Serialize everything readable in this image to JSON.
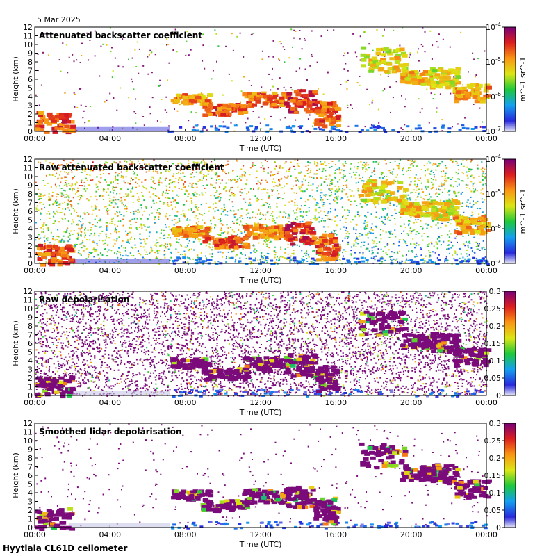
{
  "date": "5 Mar 2025",
  "footer": "Hyytiala CL61D ceilometer",
  "chart_data": [
    {
      "type": "heatmap",
      "title": "Attenuated backscatter coefficient",
      "xlabel": "Time (UTC)",
      "ylabel": "Height (km)",
      "xticks": [
        "00:00",
        "04:00",
        "08:00",
        "12:00",
        "16:00",
        "20:00",
        "00:00"
      ],
      "yticks": [
        "0",
        "1",
        "2",
        "3",
        "4",
        "5",
        "6",
        "7",
        "8",
        "9",
        "10",
        "11",
        "12"
      ],
      "xlim_hours": [
        0,
        24
      ],
      "ylim_km": [
        0,
        12
      ],
      "colorbar": {
        "scale": "log",
        "range": [
          1e-07,
          0.0001
        ],
        "ticks": [
          "10^-7",
          "10^-6",
          "10^-5",
          "10^-4"
        ],
        "units": "m^-1 sr^-1"
      },
      "background": "sparse"
    },
    {
      "type": "heatmap",
      "title": "Raw attenuated backscatter coefficient",
      "xlabel": "Time (UTC)",
      "ylabel": "Height (km)",
      "xticks": [
        "00:00",
        "04:00",
        "08:00",
        "12:00",
        "16:00",
        "20:00",
        "00:00"
      ],
      "yticks": [
        "0",
        "1",
        "2",
        "3",
        "4",
        "5",
        "6",
        "7",
        "8",
        "9",
        "10",
        "11",
        "12"
      ],
      "xlim_hours": [
        0,
        24
      ],
      "ylim_km": [
        0,
        12
      ],
      "colorbar": {
        "scale": "log",
        "range": [
          1e-07,
          0.0001
        ],
        "ticks": [
          "10^-7",
          "10^-6",
          "10^-5",
          "10^-4"
        ],
        "units": "m^-1 sr^-1"
      },
      "background": "noisy"
    },
    {
      "type": "heatmap",
      "title": "Raw depolarisation",
      "xlabel": "Time (UTC)",
      "ylabel": "Height (km)",
      "xticks": [
        "00:00",
        "04:00",
        "08:00",
        "12:00",
        "16:00",
        "20:00",
        "00:00"
      ],
      "yticks": [
        "0",
        "1",
        "2",
        "3",
        "4",
        "5",
        "6",
        "7",
        "8",
        "9",
        "10",
        "11",
        "12"
      ],
      "xlim_hours": [
        0,
        24
      ],
      "ylim_km": [
        0,
        12
      ],
      "colorbar": {
        "scale": "linear",
        "range": [
          0,
          0.3
        ],
        "ticks": [
          "0",
          "0.05",
          "0.1",
          "0.15",
          "0.2",
          "0.25",
          "0.3"
        ],
        "units": ""
      },
      "background": "depol-noise"
    },
    {
      "type": "heatmap",
      "title": "Smoothed lidar depolarisation",
      "xlabel": "Time (UTC)",
      "ylabel": "Height (km)",
      "xticks": [
        "00:00",
        "04:00",
        "08:00",
        "12:00",
        "16:00",
        "20:00",
        "00:00"
      ],
      "yticks": [
        "0",
        "1",
        "2",
        "3",
        "4",
        "5",
        "6",
        "7",
        "8",
        "9",
        "10",
        "11",
        "12"
      ],
      "xlim_hours": [
        0,
        24
      ],
      "ylim_km": [
        0,
        12
      ],
      "colorbar": {
        "scale": "linear",
        "range": [
          0,
          0.3
        ],
        "ticks": [
          "0",
          "0.05",
          "0.1",
          "0.15",
          "0.2",
          "0.25",
          "0.3"
        ],
        "units": ""
      },
      "background": "depol-sparse"
    }
  ],
  "cloud_layers": [
    {
      "start_h": 7.2,
      "end_h": 9.2,
      "base_km": 3.3,
      "top_km": 4.4,
      "signal": 0.82
    },
    {
      "start_h": 8.8,
      "end_h": 11.2,
      "base_km": 2.0,
      "top_km": 3.3,
      "signal": 0.9
    },
    {
      "start_h": 11.0,
      "end_h": 13.2,
      "base_km": 3.0,
      "top_km": 4.6,
      "signal": 0.85
    },
    {
      "start_h": 13.2,
      "end_h": 14.8,
      "base_km": 2.4,
      "top_km": 4.9,
      "signal": 0.95
    },
    {
      "start_h": 14.8,
      "end_h": 16.0,
      "base_km": 0.6,
      "top_km": 3.6,
      "signal": 0.9
    },
    {
      "start_h": 17.2,
      "end_h": 19.6,
      "base_km": 7.0,
      "top_km": 9.8,
      "signal": 0.72
    },
    {
      "start_h": 19.4,
      "end_h": 21.0,
      "base_km": 5.6,
      "top_km": 7.2,
      "signal": 0.75
    },
    {
      "start_h": 21.0,
      "end_h": 22.4,
      "base_km": 5.2,
      "top_km": 7.4,
      "signal": 0.7
    },
    {
      "start_h": 22.2,
      "end_h": 24.0,
      "base_km": 3.6,
      "top_km": 5.6,
      "signal": 0.8
    },
    {
      "start_h": 0.0,
      "end_h": 1.9,
      "base_km": 0.0,
      "top_km": 2.4,
      "signal": 0.9
    }
  ]
}
